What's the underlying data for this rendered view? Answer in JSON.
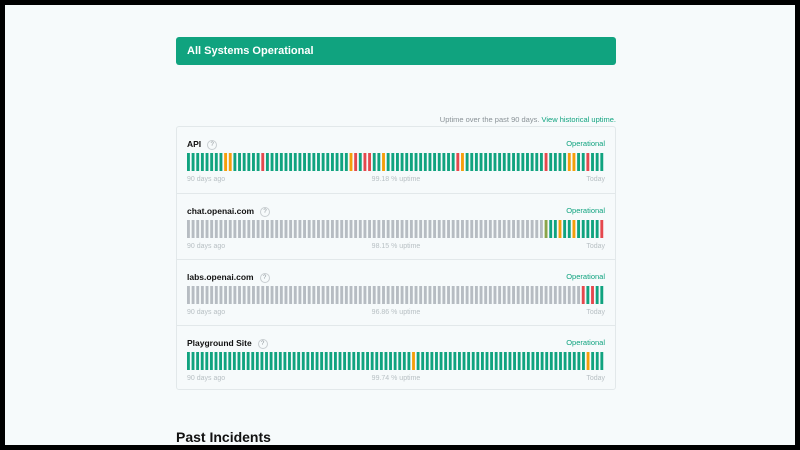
{
  "banner": {
    "text": "All Systems Operational"
  },
  "uptime_note": {
    "text": "Uptime over the past 90 days.",
    "link": "View historical uptime."
  },
  "help_glyph": "?",
  "colors": {
    "green": "#10a37f",
    "orange": "#f59e0b",
    "red": "#e5484d",
    "gray": "#b6bcc2",
    "olive": "#8aa44a"
  },
  "components": [
    {
      "name": "API",
      "status": "Operational",
      "left_label": "90 days ago",
      "uptime": "99.18 % uptime",
      "right_label": "Today",
      "days": "GGGGGGGGOOGGGGGGRGGGGGGGGGGGGGGGGGGORGRRGGOGGGGGGGGGGGGGGGROGGGGGGGGGGGGGGGGGRGGGGOOGGRGGG"
    },
    {
      "name": "chat.openai.com",
      "status": "Operational",
      "left_label": "90 days ago",
      "uptime": "98.15 % uptime",
      "right_label": "Today",
      "days": "NNNNNNNNNNNNNNNNNNNNNNNNNNNNNNNNNNNNNNNNNNNNNNNNNNNNNNNNNNNNNNNNNNNNNNNNNNNNNYGGOGGOGGGGGR"
    },
    {
      "name": "labs.openai.com",
      "status": "Operational",
      "left_label": "90 days ago",
      "uptime": "96.86 % uptime",
      "right_label": "Today",
      "days": "NNNNNNNNNNNNNNNNNNNNNNNNNNNNNNNNNNNNNNNNNNNNNNNNNNNNNNNNNNNNNNNNNNNNNNNNNNNNNNNNNNNNNRGRGG"
    },
    {
      "name": "Playground Site",
      "status": "Operational",
      "left_label": "90 days ago",
      "uptime": "99.74 % uptime",
      "right_label": "Today",
      "days": "GGGGGGGGGGGGGGGGGGGGGGGGGGGGGGGGGGGGGGGGGGGGGGGGGOGGGGGGGGGGGGGGGGGGGGGGGGGGGGGGGGGGGGGOGGG"
    }
  ],
  "past_incidents": {
    "title": "Past Incidents"
  }
}
